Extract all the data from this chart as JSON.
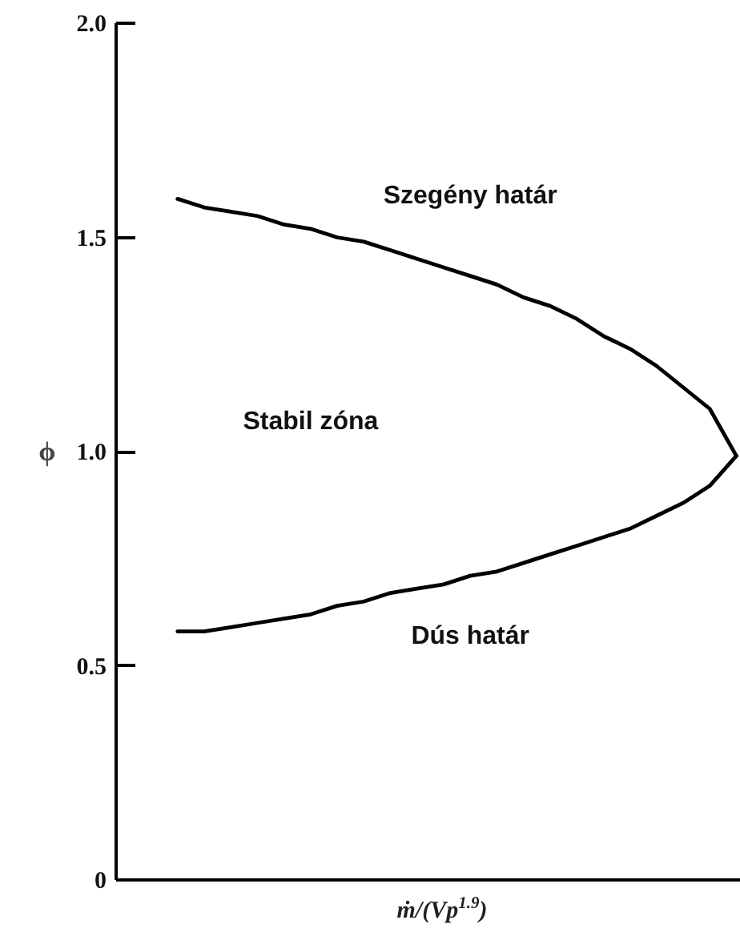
{
  "chart_data": {
    "type": "line",
    "xlabel": "ṁ/(Vp$^{1.9}$)",
    "ylabel": "ϕ",
    "categories": [
      null,
      null,
      null,
      null,
      null,
      null,
      null,
      null,
      null,
      null,
      null,
      null,
      null,
      null,
      null,
      null,
      null,
      null,
      null,
      null,
      null,
      null
    ],
    "series": [
      {
        "name": "Szegény határ",
        "color": "#000000",
        "values": [
          1.59,
          1.57,
          1.56,
          1.55,
          1.53,
          1.52,
          1.5,
          1.49,
          1.47,
          1.45,
          1.43,
          1.41,
          1.39,
          1.36,
          1.34,
          1.31,
          1.27,
          1.24,
          1.2,
          1.15,
          1.1,
          0.99
        ]
      },
      {
        "name": "Dús határ",
        "color": "#000000",
        "values": [
          0.58,
          0.58,
          0.59,
          0.6,
          0.61,
          0.62,
          0.64,
          0.65,
          0.67,
          0.68,
          0.69,
          0.71,
          0.72,
          0.74,
          0.76,
          0.78,
          0.8,
          0.82,
          0.85,
          0.88,
          0.92,
          0.99
        ]
      }
    ],
    "annotations": [
      "Stabil zóna"
    ],
    "ylim": [
      0,
      2.0
    ],
    "yticks": [
      0,
      0.5,
      {
        "value": 1,
        "label": "1.0"
      },
      1.5,
      {
        "value": 2,
        "label": "2.0"
      }
    ],
    "tick_labels": "y",
    "line_style": "solid"
  }
}
